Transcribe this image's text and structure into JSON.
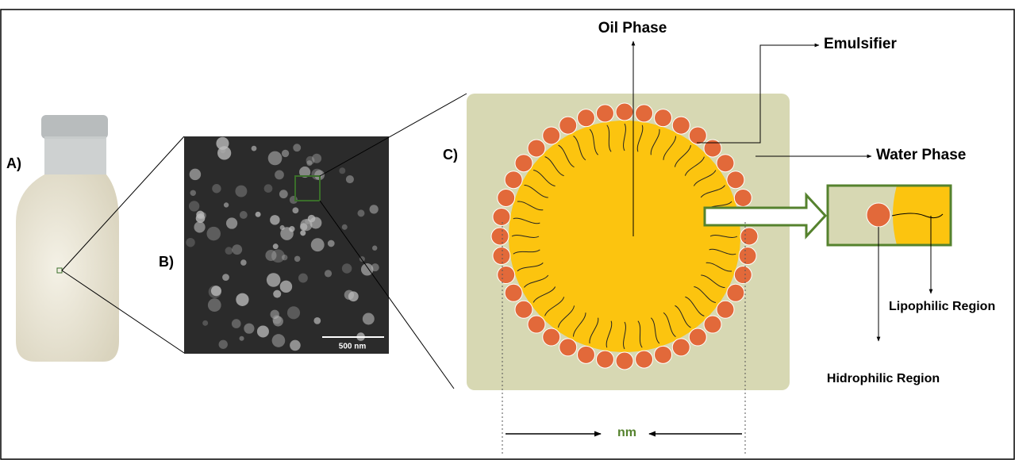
{
  "labels": {
    "a": "A)",
    "b": "B)",
    "c": "C)"
  },
  "scale_bar": "500 nm",
  "oil_phase": "Oil Phase",
  "emulsifier": "Emulsifier",
  "water_phase": "Water Phase",
  "lipophilic": "Lipophilic Region",
  "hidrophilic": "Hidrophilic Region",
  "size_unit": "nm"
}
